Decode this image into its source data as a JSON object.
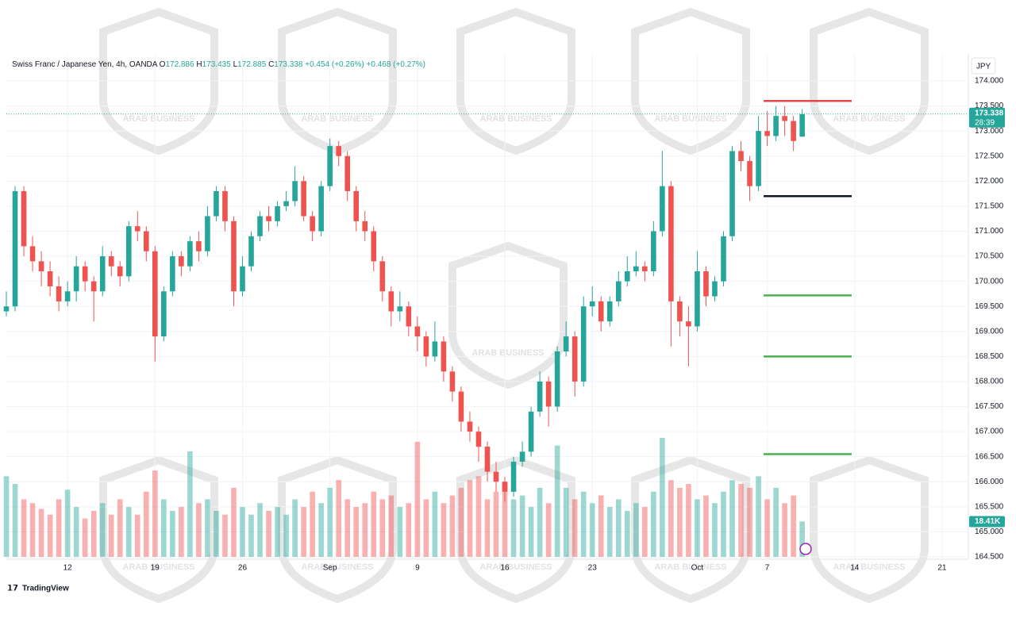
{
  "chart_data": {
    "type": "candlestick",
    "header": {
      "symbol": "Swiss Franc / Japanese Yen, 4h, OANDA",
      "ohlc": [
        {
          "key": "O",
          "value": "172.886"
        },
        {
          "key": "H",
          "value": "173.435"
        },
        {
          "key": "L",
          "value": "172.885"
        },
        {
          "key": "C",
          "value": "173.338"
        }
      ],
      "changes": [
        "+0.454 (+0.26%)",
        "+0.468 (+0.27%)"
      ]
    },
    "currency": "JPY",
    "last_price_label": "173.338",
    "countdown": "28:39",
    "brand": "TradingView",
    "watermark": "ARAB BUSINESS",
    "up_color": "#26a69a",
    "down_color": "#ef5350",
    "x": [
      -7,
      -6,
      -5,
      -4,
      -3,
      -2,
      -1,
      0,
      1,
      2,
      3,
      4,
      5,
      6,
      7,
      8,
      9,
      10,
      11,
      12,
      13,
      14,
      15,
      16,
      17,
      18,
      19,
      20,
      21,
      22,
      23,
      24,
      25,
      26,
      27,
      28,
      29,
      30,
      31,
      32,
      33,
      34,
      35,
      36,
      37,
      38,
      39,
      40,
      41,
      42,
      43,
      44,
      45,
      46,
      47,
      48,
      49,
      50,
      51,
      52,
      53,
      54,
      55,
      56,
      57,
      58,
      59,
      60,
      61,
      62,
      63,
      64,
      65,
      66,
      67,
      68,
      69,
      70,
      71,
      72,
      73,
      74,
      75,
      76,
      77,
      78,
      79,
      80,
      81,
      82,
      83,
      84
    ],
    "open": [
      169.4,
      169.5,
      171.8,
      170.7,
      170.4,
      170.2,
      169.9,
      169.6,
      169.8,
      170.3,
      170.0,
      169.8,
      170.5,
      170.3,
      170.1,
      171.1,
      171.0,
      170.6,
      168.9,
      169.8,
      170.5,
      170.3,
      170.8,
      170.6,
      171.3,
      171.8,
      171.2,
      169.8,
      170.3,
      170.9,
      171.3,
      171.2,
      171.5,
      171.6,
      172.0,
      171.3,
      171.0,
      171.9,
      172.7,
      172.5,
      171.8,
      171.2,
      171.0,
      170.4,
      169.8,
      169.4,
      169.5,
      169.1,
      168.9,
      168.5,
      168.8,
      168.2,
      167.8,
      167.2,
      167.0,
      166.7,
      166.2,
      166.0,
      165.8,
      166.4,
      166.6,
      167.4,
      168.0,
      167.5,
      168.6,
      168.9,
      168.0,
      169.5,
      169.6,
      169.2,
      169.6,
      170.0,
      170.2,
      170.3,
      170.2,
      171.0,
      171.9,
      169.6,
      169.2,
      169.1,
      170.2,
      169.7,
      170.0,
      170.9,
      172.6,
      172.4,
      171.9,
      173.0,
      172.9,
      173.3,
      173.2,
      172.886
    ],
    "high": [
      169.8,
      171.9,
      171.9,
      170.9,
      170.6,
      170.4,
      170.1,
      170.0,
      170.5,
      170.4,
      170.1,
      170.7,
      170.6,
      170.4,
      171.2,
      171.4,
      171.1,
      170.7,
      169.9,
      170.6,
      170.6,
      170.9,
      171.0,
      171.5,
      171.9,
      171.9,
      171.3,
      170.5,
      171.0,
      171.4,
      171.5,
      171.6,
      171.8,
      172.3,
      172.1,
      171.4,
      172.0,
      172.85,
      172.8,
      172.6,
      171.9,
      171.4,
      171.1,
      170.5,
      169.9,
      169.8,
      169.6,
      169.3,
      169.0,
      169.2,
      168.9,
      168.3,
      167.9,
      167.4,
      167.1,
      166.8,
      166.4,
      166.1,
      166.5,
      166.8,
      167.5,
      168.2,
      168.1,
      168.7,
      169.2,
      169.0,
      169.7,
      169.9,
      169.7,
      169.7,
      170.2,
      170.5,
      170.6,
      170.4,
      171.2,
      172.6,
      172.0,
      169.7,
      169.5,
      170.6,
      170.3,
      170.1,
      171.0,
      172.7,
      172.8,
      172.5,
      173.3,
      173.4,
      173.5,
      173.5,
      173.3,
      173.435
    ],
    "low": [
      169.3,
      169.4,
      170.5,
      170.2,
      169.9,
      169.7,
      169.4,
      169.5,
      169.6,
      169.8,
      169.2,
      169.7,
      170.1,
      169.9,
      170.0,
      170.8,
      170.4,
      168.4,
      168.8,
      169.7,
      170.1,
      170.2,
      170.4,
      170.5,
      171.2,
      171.0,
      169.5,
      169.7,
      170.2,
      170.8,
      171.0,
      171.1,
      171.4,
      171.5,
      171.2,
      170.8,
      170.9,
      171.8,
      172.3,
      171.6,
      171.0,
      170.8,
      170.2,
      169.6,
      169.1,
      169.2,
      168.9,
      168.6,
      168.3,
      168.4,
      168.0,
      167.6,
      167.0,
      166.8,
      166.4,
      166.0,
      165.8,
      165.6,
      165.7,
      166.3,
      166.5,
      167.3,
      167.1,
      167.4,
      168.5,
      167.7,
      167.9,
      169.3,
      169.0,
      169.1,
      169.5,
      169.9,
      170.1,
      170.0,
      170.1,
      170.9,
      168.7,
      168.9,
      168.3,
      169.0,
      169.5,
      169.6,
      169.9,
      170.8,
      172.2,
      171.6,
      171.8,
      172.7,
      172.8,
      172.9,
      172.6,
      172.885
    ],
    "close": [
      169.5,
      171.8,
      170.7,
      170.4,
      170.2,
      169.9,
      169.6,
      169.8,
      170.3,
      170.0,
      169.8,
      170.5,
      170.3,
      170.1,
      171.1,
      171.0,
      170.6,
      168.9,
      169.8,
      170.5,
      170.3,
      170.8,
      170.6,
      171.3,
      171.8,
      171.2,
      169.8,
      170.3,
      170.9,
      171.3,
      171.2,
      171.5,
      171.6,
      172.0,
      171.3,
      171.0,
      171.9,
      172.7,
      172.5,
      171.8,
      171.2,
      171.0,
      170.4,
      169.8,
      169.4,
      169.5,
      169.1,
      168.9,
      168.5,
      168.8,
      168.2,
      167.8,
      167.2,
      167.0,
      166.7,
      166.2,
      166.0,
      165.8,
      166.4,
      166.6,
      167.4,
      168.0,
      167.5,
      168.6,
      168.9,
      168.0,
      169.5,
      169.6,
      169.2,
      169.6,
      170.0,
      170.2,
      170.3,
      170.2,
      171.0,
      171.9,
      169.6,
      169.2,
      169.1,
      170.2,
      169.7,
      170.0,
      170.9,
      172.6,
      172.4,
      171.9,
      173.0,
      172.9,
      173.3,
      173.2,
      172.8,
      173.338
    ],
    "volume": {
      "values": [
        42,
        38,
        30,
        28,
        25,
        22,
        30,
        35,
        26,
        20,
        24,
        28,
        22,
        30,
        26,
        22,
        34,
        45,
        30,
        24,
        26,
        55,
        28,
        30,
        24,
        22,
        36,
        26,
        22,
        28,
        24,
        26,
        22,
        30,
        26,
        34,
        28,
        36,
        40,
        30,
        26,
        28,
        34,
        30,
        32,
        26,
        28,
        60,
        30,
        34,
        28,
        32,
        36,
        40,
        42,
        30,
        34,
        38,
        30,
        32,
        26,
        36,
        28,
        58,
        36,
        30,
        34,
        28,
        32,
        26,
        30,
        24,
        28,
        26,
        34,
        62,
        40,
        36,
        38,
        30,
        32,
        28,
        34,
        40,
        38,
        36,
        42,
        30,
        36,
        28,
        32,
        18.41
      ],
      "last_label": "18.41K"
    },
    "levels": [
      {
        "value": 173.6,
        "color": "#e04848"
      },
      {
        "value": 171.7,
        "color": "#131722"
      },
      {
        "value": 169.72,
        "color": "#4caf50"
      },
      {
        "value": 168.5,
        "color": "#4caf50"
      },
      {
        "value": 166.55,
        "color": "#4caf50"
      }
    ],
    "xlim": [
      -7,
      103
    ],
    "ylim": [
      164.5,
      174.0
    ],
    "xticks": [
      {
        "value": 0,
        "label": "12"
      },
      {
        "value": 10,
        "label": "19"
      },
      {
        "value": 20,
        "label": "26"
      },
      {
        "value": 30,
        "label": "Sep"
      },
      {
        "value": 40,
        "label": "9"
      },
      {
        "value": 50,
        "label": "16"
      },
      {
        "value": 60,
        "label": "23"
      },
      {
        "value": 72,
        "label": "Oct"
      },
      {
        "value": 80,
        "label": "7"
      },
      {
        "value": 90,
        "label": "14"
      },
      {
        "value": 100,
        "label": "21"
      }
    ],
    "yticks": [
      {
        "value": 174.0,
        "label": "174.000"
      },
      {
        "value": 173.5,
        "label": "173.500"
      },
      {
        "value": 173.0,
        "label": "173.000"
      },
      {
        "value": 172.5,
        "label": "172.500"
      },
      {
        "value": 172.0,
        "label": "172.000"
      },
      {
        "value": 171.5,
        "label": "171.500"
      },
      {
        "value": 171.0,
        "label": "171.000"
      },
      {
        "value": 170.5,
        "label": "170.500"
      },
      {
        "value": 170.0,
        "label": "170.000"
      },
      {
        "value": 169.5,
        "label": "169.500"
      },
      {
        "value": 169.0,
        "label": "169.000"
      },
      {
        "value": 168.5,
        "label": "168.500"
      },
      {
        "value": 168.0,
        "label": "168.000"
      },
      {
        "value": 167.5,
        "label": "167.500"
      },
      {
        "value": 167.0,
        "label": "167.000"
      },
      {
        "value": 166.5,
        "label": "166.500"
      },
      {
        "value": 166.0,
        "label": "166.000"
      },
      {
        "value": 165.5,
        "label": "165.500"
      },
      {
        "value": 165.0,
        "label": "165.000"
      },
      {
        "value": 164.5,
        "label": "164.500"
      }
    ],
    "grid": true
  }
}
